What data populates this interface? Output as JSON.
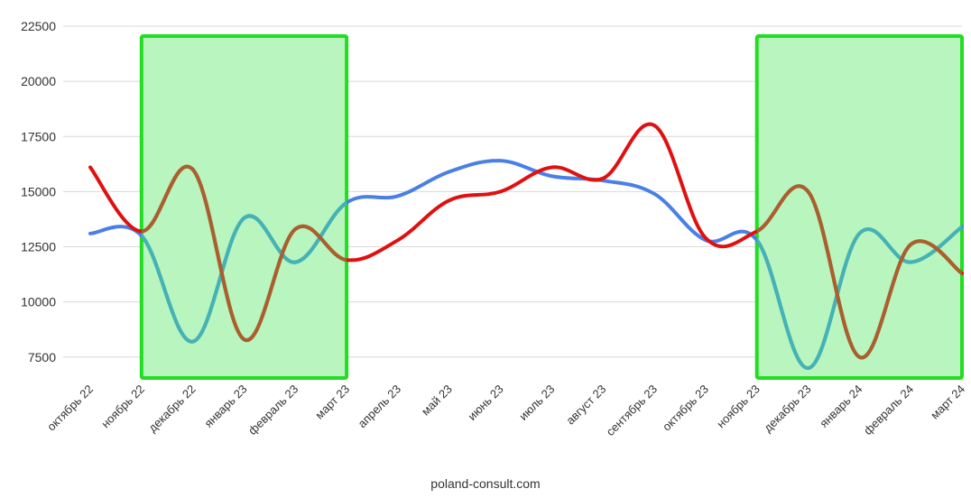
{
  "footer": "poland-consult.com",
  "colors": {
    "blue_series": "#4a7fe6",
    "red_series": "#e01010",
    "highlight_fill": "#b8f5bf",
    "highlight_border": "#22dd22",
    "gridline": "#d9d9d9"
  },
  "chart_data": {
    "type": "line",
    "categories": [
      "октябрь 22",
      "ноябрь 22",
      "декабрь 22",
      "январь 23",
      "февраль 23",
      "март 23",
      "апрель 23",
      "май 23",
      "июнь 23",
      "июль 23",
      "август 23",
      "сентябрь 23",
      "октябрь 23",
      "ноябрь 23",
      "декабрь 23",
      "январь 24",
      "февраль 24",
      "март 24"
    ],
    "series": [
      {
        "color": "#4a7fe6",
        "values": [
          13100,
          13000,
          8200,
          13800,
          11800,
          14500,
          14800,
          15900,
          16400,
          15700,
          15500,
          14900,
          12800,
          12800,
          7000,
          13100,
          11800,
          13400
        ]
      },
      {
        "color": "#e01010",
        "values": [
          16100,
          13200,
          16000,
          8300,
          13300,
          11900,
          12800,
          14600,
          15000,
          16100,
          15600,
          18000,
          12900,
          13200,
          15000,
          7500,
          12600,
          11300
        ]
      }
    ],
    "y_ticks": [
      "7500",
      "10000",
      "12500",
      "15000",
      "17500",
      "20000",
      "22500"
    ],
    "ylim": [
      7000,
      22500
    ],
    "grid": true,
    "legend": "none",
    "highlighted_ranges": [
      {
        "from": "ноябрь 22",
        "to": "март 23"
      },
      {
        "from": "ноябрь 23",
        "to": "март 24"
      }
    ]
  }
}
